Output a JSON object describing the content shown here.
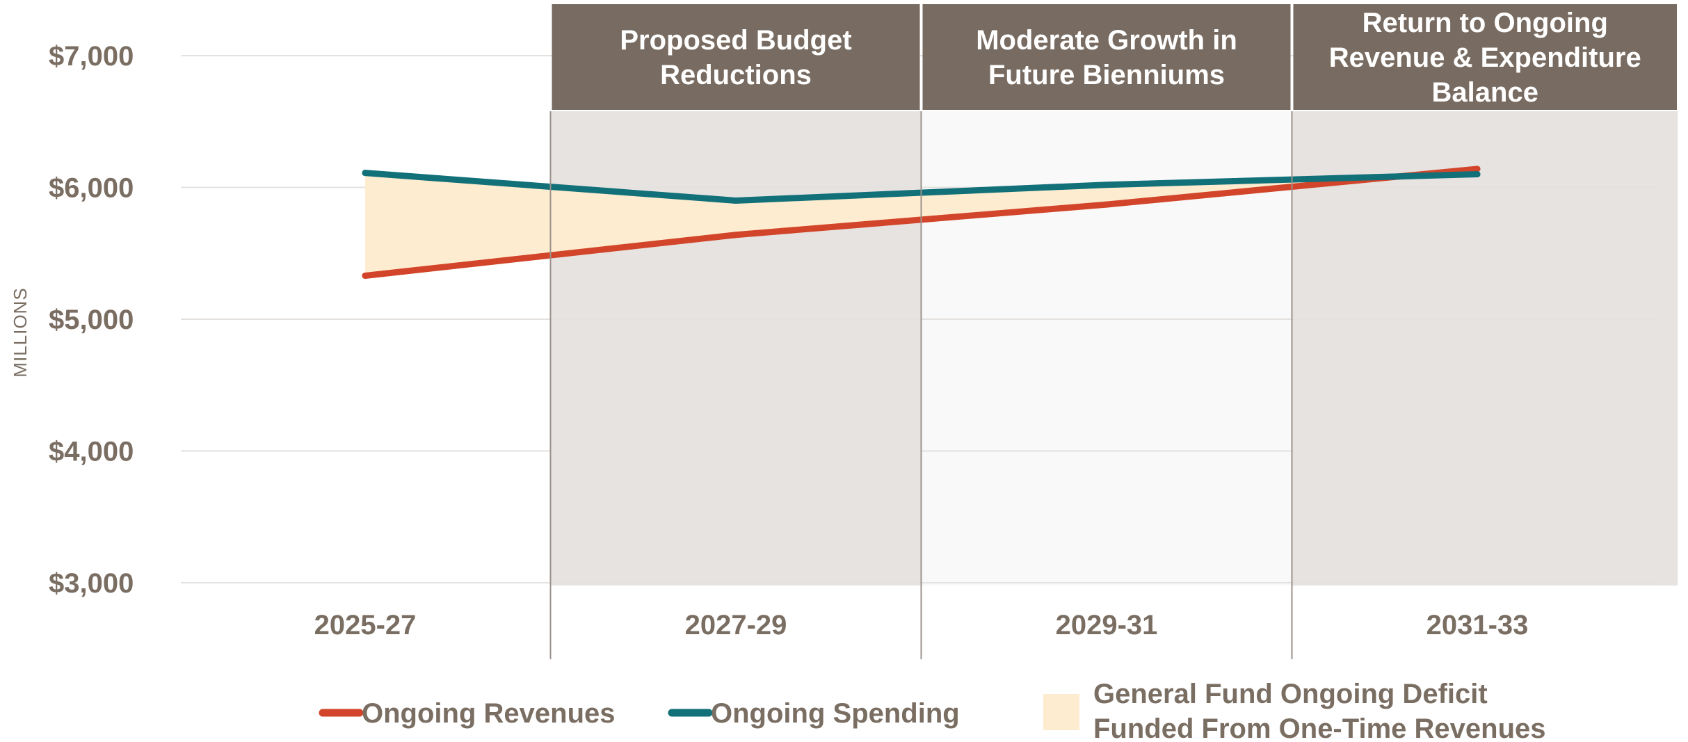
{
  "chart_data": {
    "type": "line",
    "title": "",
    "ylabel": "MILLIONS",
    "xlabel": "",
    "categories": [
      "2025-27",
      "2027-29",
      "2029-31",
      "2031-33"
    ],
    "y_ticks": [
      "$7,000",
      "$6,000",
      "$5,000",
      "$4,000",
      "$3,000"
    ],
    "y_tick_values": [
      7000,
      6000,
      5000,
      4000,
      3000
    ],
    "ylim": [
      3000,
      7000
    ],
    "grid": true,
    "series": [
      {
        "name": "Ongoing Revenues",
        "color": "#d2452a",
        "values": [
          5330,
          5640,
          5870,
          6140
        ]
      },
      {
        "name": "Ongoing Spending",
        "color": "#127079",
        "values": [
          6110,
          5900,
          6020,
          6100
        ]
      }
    ],
    "shaded_area": {
      "name_lines": [
        "General Fund Ongoing Deficit",
        "Funded From One-Time Revenues"
      ],
      "color": "#fdecd0",
      "between": [
        "Ongoing Revenues",
        "Ongoing Spending"
      ]
    },
    "phases": [
      {
        "label_lines": [
          "Proposed Budget",
          "Reductions"
        ],
        "start_category": 1,
        "header_color": "#786b61",
        "band_color": "#e6e3e1"
      },
      {
        "label_lines": [
          "Moderate Growth in",
          "Future Bienniums"
        ],
        "start_category": 2,
        "header_color": "#786b61",
        "band_color": "#f9f9f9"
      },
      {
        "label_lines": [
          "Return to Ongoing",
          "Revenue & Expenditure",
          "Balance"
        ],
        "start_category": 3,
        "header_color": "#786b61",
        "band_color": "#e6e3e1"
      }
    ],
    "legend_position": "bottom"
  }
}
